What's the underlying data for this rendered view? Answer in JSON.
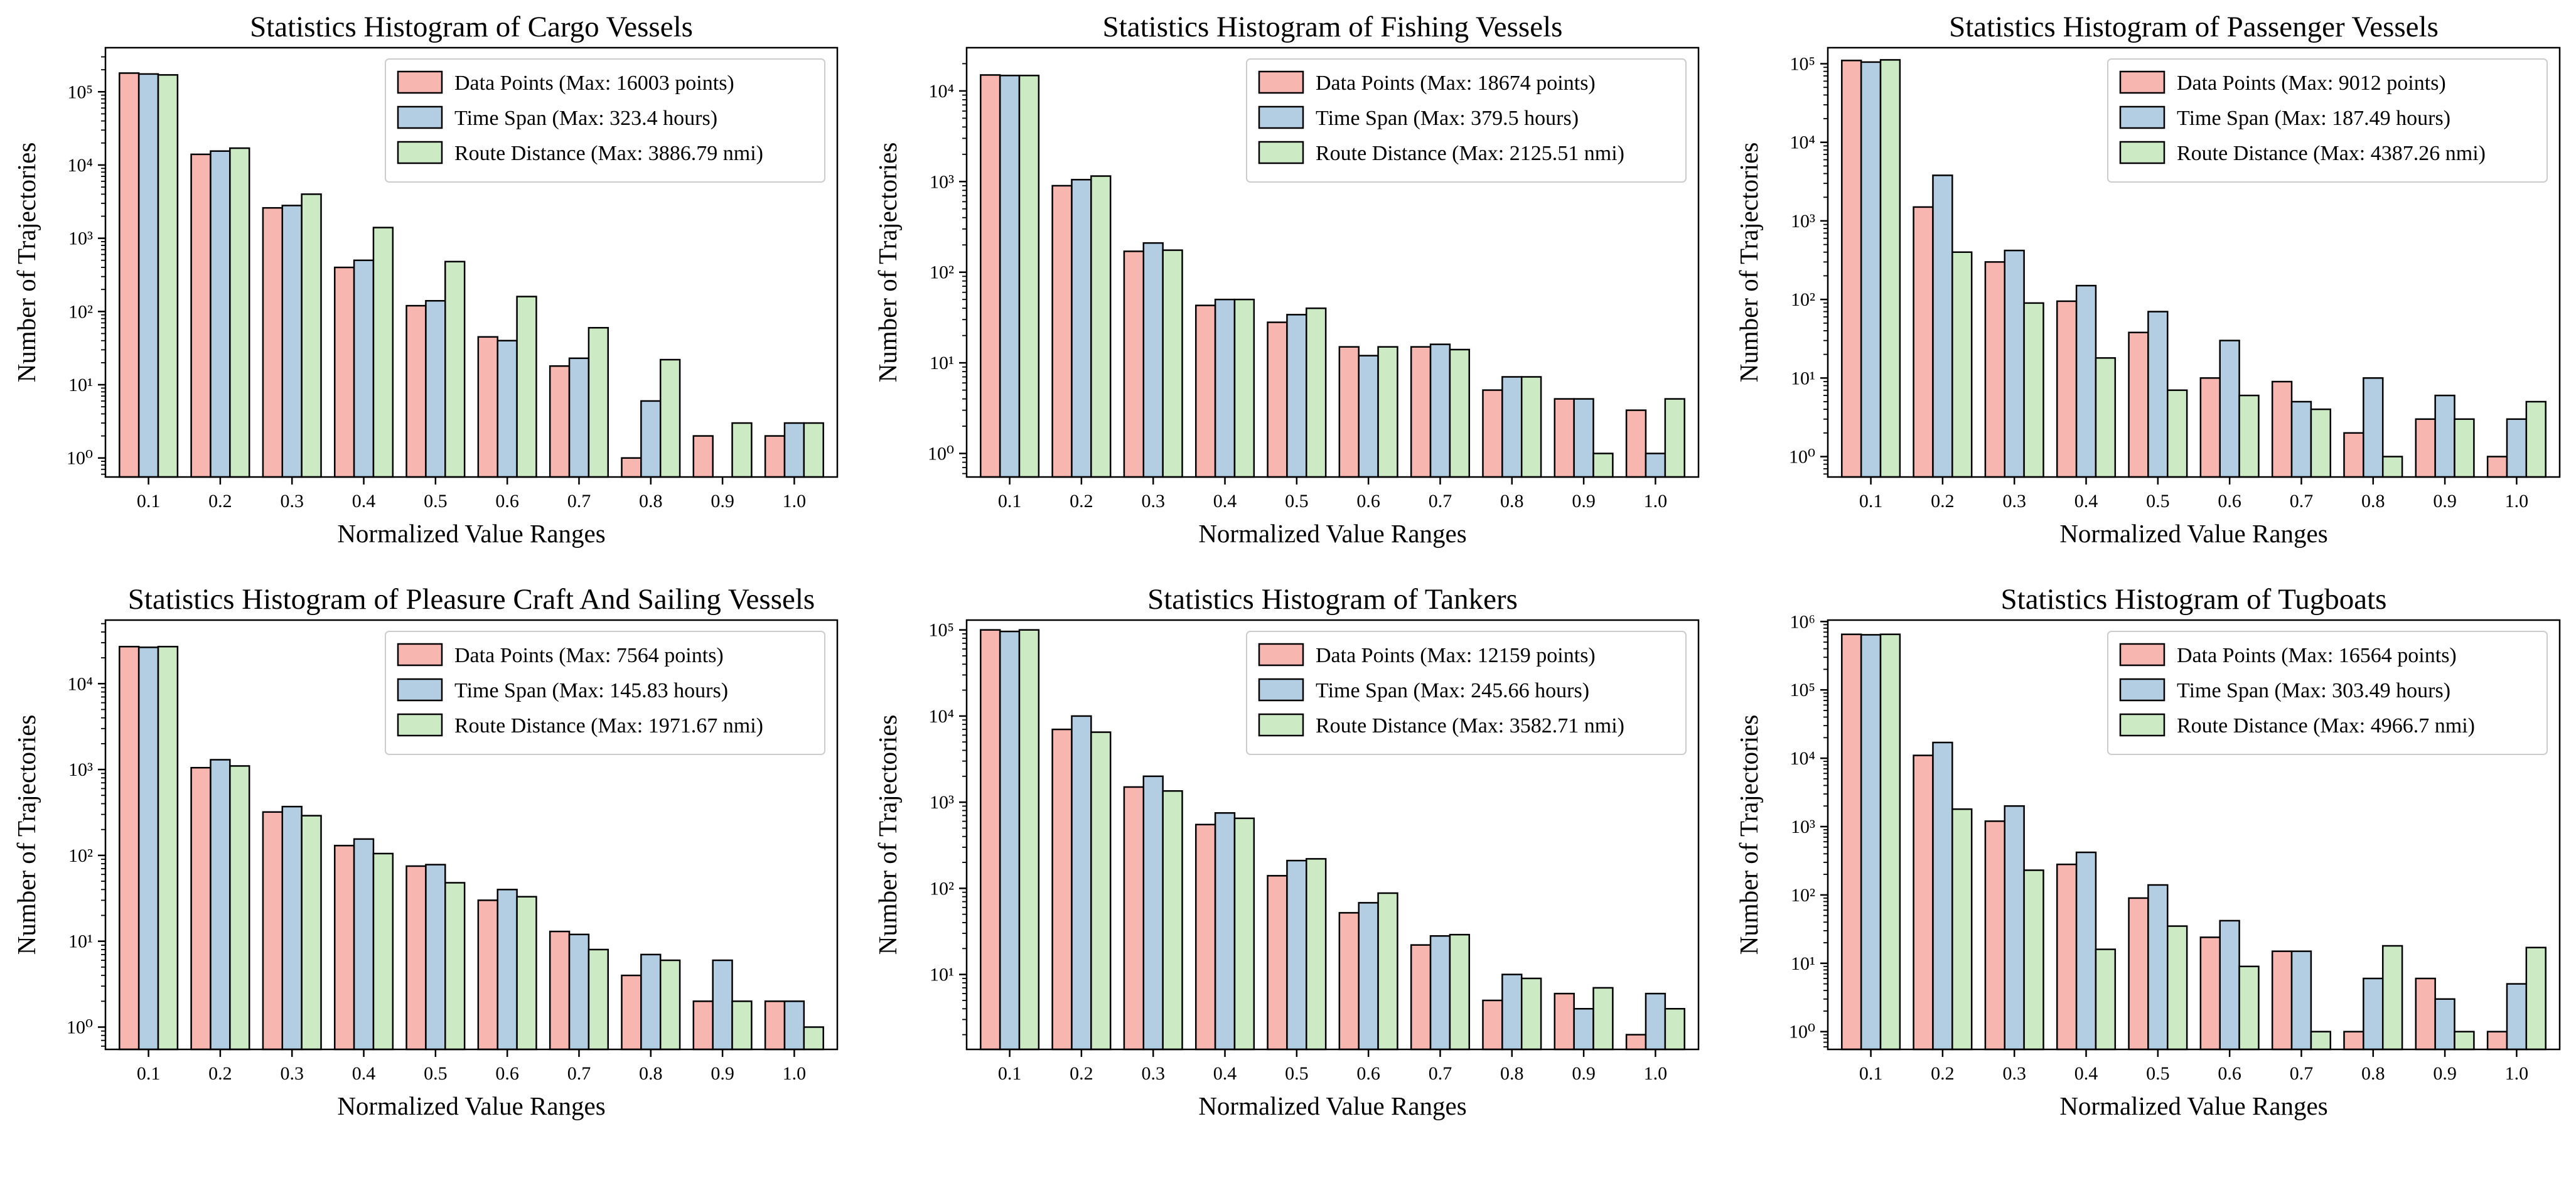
{
  "colors": {
    "data_points": "#f7b6b0",
    "time_span": "#b3cde3",
    "route_distance": "#ccebc5"
  },
  "chart_data": [
    {
      "type": "bar",
      "scale": "log",
      "title": "Statistics Histogram of Cargo Vessels",
      "xlabel": "Normalized Value Ranges",
      "ylabel": "Number of Trajectories",
      "categories": [
        "0.1",
        "0.2",
        "0.3",
        "0.4",
        "0.5",
        "0.6",
        "0.7",
        "0.8",
        "0.9",
        "1.0"
      ],
      "ylim": [
        0.55,
        400000
      ],
      "yticks": [
        {
          "exp": 0,
          "value": 1
        },
        {
          "exp": 1,
          "value": 10
        },
        {
          "exp": 2,
          "value": 100
        },
        {
          "exp": 3,
          "value": 1000
        },
        {
          "exp": 4,
          "value": 10000
        },
        {
          "exp": 5,
          "value": 100000
        }
      ],
      "series": [
        {
          "name": "Data Points (Max: 16003 points)",
          "color": "data_points",
          "values": [
            180000,
            14000,
            2600,
            400,
            120,
            45,
            18,
            1,
            2,
            2
          ]
        },
        {
          "name": "Time Span (Max: 323.4 hours)",
          "color": "time_span",
          "values": [
            175000,
            15500,
            2800,
            500,
            140,
            40,
            23,
            6,
            0,
            3
          ]
        },
        {
          "name": "Route Distance (Max: 3886.79 nmi)",
          "color": "route_distance",
          "values": [
            170000,
            17000,
            4000,
            1400,
            480,
            160,
            60,
            22,
            3,
            3
          ]
        }
      ]
    },
    {
      "type": "bar",
      "scale": "log",
      "title": "Statistics Histogram of Fishing Vessels",
      "xlabel": "Normalized Value Ranges",
      "ylabel": "Number of Trajectories",
      "categories": [
        "0.1",
        "0.2",
        "0.3",
        "0.4",
        "0.5",
        "0.6",
        "0.7",
        "0.8",
        "0.9",
        "1.0"
      ],
      "ylim": [
        0.55,
        30000
      ],
      "yticks": [
        {
          "exp": 0,
          "value": 1
        },
        {
          "exp": 1,
          "value": 10
        },
        {
          "exp": 2,
          "value": 100
        },
        {
          "exp": 3,
          "value": 1000
        },
        {
          "exp": 4,
          "value": 10000
        }
      ],
      "series": [
        {
          "name": "Data Points (Max: 18674 points)",
          "color": "data_points",
          "values": [
            15000,
            900,
            170,
            43,
            28,
            15,
            15,
            5,
            4,
            3
          ]
        },
        {
          "name": "Time Span (Max: 379.5 hours)",
          "color": "time_span",
          "values": [
            14800,
            1050,
            210,
            50,
            34,
            12,
            16,
            7,
            4,
            1
          ]
        },
        {
          "name": "Route Distance (Max: 2125.51 nmi)",
          "color": "route_distance",
          "values": [
            14800,
            1150,
            175,
            50,
            40,
            15,
            14,
            7,
            1,
            4
          ]
        }
      ]
    },
    {
      "type": "bar",
      "scale": "log",
      "title": "Statistics Histogram of Passenger Vessels",
      "xlabel": "Normalized Value Ranges",
      "ylabel": "Number of Trajectories",
      "categories": [
        "0.1",
        "0.2",
        "0.3",
        "0.4",
        "0.5",
        "0.6",
        "0.7",
        "0.8",
        "0.9",
        "1.0"
      ],
      "ylim": [
        0.55,
        160000
      ],
      "yticks": [
        {
          "exp": 0,
          "value": 1
        },
        {
          "exp": 1,
          "value": 10
        },
        {
          "exp": 2,
          "value": 100
        },
        {
          "exp": 3,
          "value": 1000
        },
        {
          "exp": 4,
          "value": 10000
        },
        {
          "exp": 5,
          "value": 100000
        }
      ],
      "series": [
        {
          "name": "Data Points (Max: 9012 points)",
          "color": "data_points",
          "values": [
            110000,
            1500,
            300,
            95,
            38,
            10,
            9,
            2,
            3,
            1
          ]
        },
        {
          "name": "Time Span (Max: 187.49 hours)",
          "color": "time_span",
          "values": [
            105000,
            3800,
            420,
            150,
            70,
            30,
            5,
            10,
            6,
            3
          ]
        },
        {
          "name": "Route Distance (Max: 4387.26 nmi)",
          "color": "route_distance",
          "values": [
            112000,
            400,
            90,
            18,
            7,
            6,
            4,
            1,
            3,
            5
          ]
        }
      ]
    },
    {
      "type": "bar",
      "scale": "log",
      "title": "Statistics Histogram of Pleasure Craft And Sailing Vessels",
      "xlabel": "Normalized Value Ranges",
      "ylabel": "Number of Trajectories",
      "categories": [
        "0.1",
        "0.2",
        "0.3",
        "0.4",
        "0.5",
        "0.6",
        "0.7",
        "0.8",
        "0.9",
        "1.0"
      ],
      "ylim": [
        0.55,
        55000
      ],
      "yticks": [
        {
          "exp": 0,
          "value": 1
        },
        {
          "exp": 1,
          "value": 10
        },
        {
          "exp": 2,
          "value": 100
        },
        {
          "exp": 3,
          "value": 1000
        },
        {
          "exp": 4,
          "value": 10000
        }
      ],
      "series": [
        {
          "name": "Data Points (Max: 7564 points)",
          "color": "data_points",
          "values": [
            27000,
            1050,
            320,
            130,
            75,
            30,
            13,
            4,
            2,
            2
          ]
        },
        {
          "name": "Time Span (Max: 145.83 hours)",
          "color": "time_span",
          "values": [
            26500,
            1300,
            370,
            155,
            78,
            40,
            12,
            7,
            6,
            2
          ]
        },
        {
          "name": "Route Distance (Max: 1971.67 nmi)",
          "color": "route_distance",
          "values": [
            27000,
            1100,
            290,
            105,
            48,
            33,
            8,
            6,
            2,
            1
          ]
        }
      ]
    },
    {
      "type": "bar",
      "scale": "log",
      "title": "Statistics Histogram of Tankers",
      "xlabel": "Normalized Value Ranges",
      "ylabel": "Number of Trajectories",
      "categories": [
        "0.1",
        "0.2",
        "0.3",
        "0.4",
        "0.5",
        "0.6",
        "0.7",
        "0.8",
        "0.9",
        "1.0"
      ],
      "ylim": [
        1.35,
        130000
      ],
      "yticks": [
        {
          "exp": 1,
          "value": 10
        },
        {
          "exp": 2,
          "value": 100
        },
        {
          "exp": 3,
          "value": 1000
        },
        {
          "exp": 4,
          "value": 10000
        },
        {
          "exp": 5,
          "value": 100000
        }
      ],
      "series": [
        {
          "name": "Data Points (Max: 12159 points)",
          "color": "data_points",
          "values": [
            100000,
            7000,
            1500,
            550,
            140,
            52,
            22,
            5,
            6,
            2
          ]
        },
        {
          "name": "Time Span (Max: 245.66 hours)",
          "color": "time_span",
          "values": [
            96000,
            10000,
            2000,
            750,
            210,
            68,
            28,
            10,
            4,
            6
          ]
        },
        {
          "name": "Route Distance (Max: 3582.71 nmi)",
          "color": "route_distance",
          "values": [
            100000,
            6500,
            1350,
            650,
            220,
            88,
            29,
            9,
            7,
            4
          ]
        }
      ]
    },
    {
      "type": "bar",
      "scale": "log",
      "title": "Statistics Histogram of Tugboats",
      "xlabel": "Normalized Value Ranges",
      "ylabel": "Number of Trajectories",
      "categories": [
        "0.1",
        "0.2",
        "0.3",
        "0.4",
        "0.5",
        "0.6",
        "0.7",
        "0.8",
        "0.9",
        "1.0"
      ],
      "ylim": [
        0.55,
        1050000
      ],
      "yticks": [
        {
          "exp": 0,
          "value": 1
        },
        {
          "exp": 1,
          "value": 10
        },
        {
          "exp": 2,
          "value": 100
        },
        {
          "exp": 3,
          "value": 1000
        },
        {
          "exp": 4,
          "value": 10000
        },
        {
          "exp": 5,
          "value": 100000
        },
        {
          "exp": 6,
          "value": 1000000
        }
      ],
      "series": [
        {
          "name": "Data Points (Max: 16564 points)",
          "color": "data_points",
          "values": [
            650000,
            11000,
            1200,
            280,
            90,
            24,
            15,
            1,
            6,
            1
          ]
        },
        {
          "name": "Time Span (Max: 303.49 hours)",
          "color": "time_span",
          "values": [
            640000,
            17000,
            2000,
            420,
            140,
            42,
            15,
            6,
            3,
            5
          ]
        },
        {
          "name": "Route Distance (Max: 4966.7 nmi)",
          "color": "route_distance",
          "values": [
            650000,
            1800,
            230,
            16,
            35,
            9,
            1,
            18,
            1,
            17
          ]
        }
      ]
    }
  ]
}
